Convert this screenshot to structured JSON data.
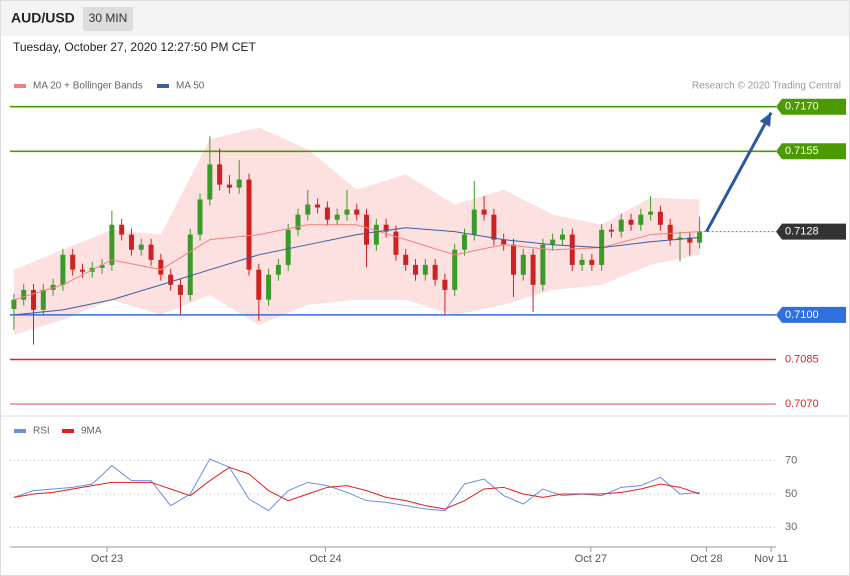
{
  "header": {
    "symbol": "AUD/USD",
    "timeframe": "30 MIN",
    "datetime": "Tuesday, October 27, 2020 12:27:50 PM CET"
  },
  "chart_data": [
    {
      "type": "candlestick",
      "credit": "Research © 2020 Trading Central",
      "xlim": [
        -0.4,
        77.8
      ],
      "ylim": [
        0.7066,
        0.7182
      ],
      "up_color": "#3a9a2a",
      "down_color": "#cc2222",
      "x": [
        0,
        1,
        2,
        3,
        4,
        5,
        6,
        7,
        8,
        9,
        10,
        11,
        12,
        13,
        14,
        15,
        16,
        17,
        18,
        19,
        20,
        21,
        22,
        23,
        24,
        25,
        26,
        27,
        28,
        29,
        30,
        31,
        32,
        33,
        34,
        35,
        36,
        37,
        38,
        39,
        40,
        41,
        42,
        43,
        44,
        45,
        46,
        47,
        48,
        49,
        50,
        51,
        52,
        53,
        54,
        55,
        56,
        57,
        58,
        59,
        60,
        61,
        62,
        63,
        64,
        65,
        66,
        67,
        68,
        69,
        70
      ],
      "open": [
        0.7102,
        0.71051,
        0.71084,
        0.71017,
        0.71084,
        0.71101,
        0.71202,
        0.71152,
        0.71145,
        0.71158,
        0.71168,
        0.71303,
        0.7127,
        0.71219,
        0.71236,
        0.71185,
        0.71135,
        0.71101,
        0.71067,
        0.7127,
        0.71388,
        0.71506,
        0.71438,
        0.71428,
        0.71455,
        0.71152,
        0.71051,
        0.71135,
        0.71168,
        0.71286,
        0.71337,
        0.71371,
        0.71361,
        0.7132,
        0.71337,
        0.71354,
        0.71337,
        0.71236,
        0.71303,
        0.7128,
        0.71202,
        0.71168,
        0.71135,
        0.71168,
        0.71118,
        0.71084,
        0.71219,
        0.7127,
        0.71354,
        0.71337,
        0.71253,
        0.71236,
        0.71135,
        0.71202,
        0.71101,
        0.71236,
        0.71253,
        0.7127,
        0.71168,
        0.71185,
        0.71168,
        0.71286,
        0.7128,
        0.7132,
        0.71303,
        0.71337,
        0.71347,
        0.71303,
        0.71253,
        0.7126,
        0.71243
      ],
      "high": [
        0.71071,
        0.71104,
        0.71104,
        0.71104,
        0.71121,
        0.71222,
        0.71222,
        0.71172,
        0.71178,
        0.71188,
        0.7135,
        0.71323,
        0.7129,
        0.71256,
        0.71256,
        0.71205,
        0.71155,
        0.71121,
        0.7129,
        0.71408,
        0.716,
        0.7156,
        0.7147,
        0.7152,
        0.71475,
        0.71172,
        0.71155,
        0.71188,
        0.71306,
        0.71357,
        0.7142,
        0.71391,
        0.71381,
        0.71357,
        0.7142,
        0.71374,
        0.71357,
        0.71323,
        0.71323,
        0.713,
        0.71222,
        0.71188,
        0.71188,
        0.71188,
        0.71138,
        0.71239,
        0.7129,
        0.7145,
        0.714,
        0.71357,
        0.71273,
        0.71256,
        0.71222,
        0.71222,
        0.71256,
        0.71273,
        0.7129,
        0.7129,
        0.71205,
        0.71205,
        0.71306,
        0.71306,
        0.7134,
        0.7134,
        0.71357,
        0.714,
        0.71367,
        0.71323,
        0.7128,
        0.7128,
        0.7133
      ],
      "low": [
        0.7095,
        0.71031,
        0.709,
        0.70997,
        0.71064,
        0.71081,
        0.71132,
        0.71125,
        0.71125,
        0.71138,
        0.71148,
        0.7125,
        0.71199,
        0.71199,
        0.71165,
        0.71115,
        0.71081,
        0.71,
        0.71047,
        0.7125,
        0.71368,
        0.71418,
        0.71408,
        0.71408,
        0.71132,
        0.7098,
        0.71031,
        0.71115,
        0.71148,
        0.71266,
        0.71317,
        0.71341,
        0.713,
        0.713,
        0.71317,
        0.71317,
        0.7116,
        0.71216,
        0.7126,
        0.71182,
        0.71148,
        0.71115,
        0.71115,
        0.71098,
        0.71,
        0.71064,
        0.71199,
        0.7125,
        0.71317,
        0.71233,
        0.71216,
        0.7106,
        0.71115,
        0.7101,
        0.71081,
        0.71216,
        0.71233,
        0.71148,
        0.71148,
        0.71148,
        0.71148,
        0.7126,
        0.7126,
        0.71283,
        0.71283,
        0.71317,
        0.71283,
        0.71233,
        0.7118,
        0.712,
        0.71223
      ],
      "close": [
        0.71051,
        0.71084,
        0.71017,
        0.71084,
        0.71101,
        0.71202,
        0.71152,
        0.71145,
        0.71158,
        0.71168,
        0.71303,
        0.7127,
        0.71219,
        0.71236,
        0.71185,
        0.71135,
        0.71101,
        0.71067,
        0.7127,
        0.71388,
        0.71506,
        0.71438,
        0.71428,
        0.71455,
        0.71152,
        0.71051,
        0.71135,
        0.71168,
        0.71286,
        0.71337,
        0.71371,
        0.71361,
        0.7132,
        0.71337,
        0.71354,
        0.71337,
        0.71236,
        0.71303,
        0.7128,
        0.71202,
        0.71168,
        0.71135,
        0.71168,
        0.71118,
        0.71084,
        0.71219,
        0.7127,
        0.71354,
        0.71337,
        0.71253,
        0.71236,
        0.71135,
        0.71202,
        0.71101,
        0.71236,
        0.71253,
        0.7127,
        0.71168,
        0.71185,
        0.71168,
        0.71286,
        0.7128,
        0.7132,
        0.71303,
        0.71337,
        0.71347,
        0.71303,
        0.71253,
        0.7126,
        0.71243,
        0.7128
      ],
      "overlays": {
        "x": [
          0,
          5,
          10,
          15,
          20,
          25,
          30,
          35,
          40,
          45,
          50,
          55,
          60,
          65,
          70
        ],
        "series": [
          {
            "name": "MA 20 + Bollinger Bands",
            "color": "#f08080",
            "band_color": "#fde0e0",
            "values": [
              0.71051,
              0.71101,
              0.71185,
              0.71152,
              0.71253,
              0.7127,
              0.71303,
              0.71303,
              0.71253,
              0.71202,
              0.71236,
              0.71219,
              0.71226,
              0.7127,
              0.7128
            ],
            "upper": [
              0.71152,
              0.71219,
              0.71286,
              0.7127,
              0.7159,
              0.7163,
              0.71556,
              0.71421,
              0.71472,
              0.71371,
              0.71421,
              0.71337,
              0.71303,
              0.71394,
              0.71388
            ],
            "lower": [
              0.70933,
              0.70983,
              0.71051,
              0.71,
              0.71067,
              0.70966,
              0.71034,
              0.71051,
              0.71051,
              0.71,
              0.71034,
              0.71084,
              0.71101,
              0.71168,
              0.71202
            ]
          },
          {
            "name": "MA 50",
            "color": "#3a5f9f",
            "values": [
              0.71,
              0.71017,
              0.71051,
              0.71101,
              0.71152,
              0.71202,
              0.71236,
              0.7127,
              0.71293,
              0.7128,
              0.71253,
              0.71236,
              0.71226,
              0.71246,
              0.7126
            ]
          }
        ]
      },
      "levels": [
        {
          "value": 0.717,
          "label": "0.7170",
          "color": "#4a9a00",
          "style": "box",
          "line": "solid"
        },
        {
          "value": 0.7155,
          "label": "0.7155",
          "color": "#4a9a00",
          "style": "box",
          "line": "solid"
        },
        {
          "value": 0.7128,
          "label": "0.7128",
          "color": "#333333",
          "style": "box",
          "line": "dotted"
        },
        {
          "value": 0.71,
          "label": "0.7100",
          "color": "#2f6fe0",
          "style": "box",
          "line": "solid"
        },
        {
          "value": 0.7085,
          "label": "0.7085",
          "color": "#dd2222",
          "style": "text",
          "line": "solid"
        },
        {
          "value": 0.707,
          "label": "0.7070",
          "color": "#dd2222",
          "style": "text",
          "line": "solid"
        }
      ],
      "arrow": {
        "x": [
          70.7,
          77.3
        ],
        "y": [
          0.7128,
          0.7168
        ],
        "color": "#2c5aa0"
      }
    },
    {
      "type": "line",
      "xlim": [
        -0.4,
        77.8
      ],
      "ylim": [
        20,
        80
      ],
      "yticks": [
        30,
        50,
        70
      ],
      "grid": true,
      "xticks": [
        {
          "value": 9.5,
          "label": "Oct 23"
        },
        {
          "value": 31.8,
          "label": "Oct 24"
        },
        {
          "value": 58.9,
          "label": "Oct 27"
        },
        {
          "value": 70.7,
          "label": "Oct 28"
        },
        {
          "value": 77.3,
          "label": "Nov 11"
        }
      ],
      "x": [
        0,
        2,
        4,
        6,
        8,
        10,
        12,
        14,
        16,
        18,
        20,
        22,
        24,
        26,
        28,
        30,
        32,
        34,
        36,
        38,
        40,
        42,
        44,
        46,
        48,
        50,
        52,
        54,
        56,
        58,
        60,
        62,
        64,
        66,
        68,
        70
      ],
      "series": [
        {
          "name": "RSI",
          "color": "#6b8fe0",
          "values": [
            48,
            52,
            53,
            54,
            56,
            67,
            58,
            58,
            43,
            50,
            71,
            66,
            47,
            40,
            52,
            57,
            55,
            51,
            46,
            45,
            43,
            41,
            40,
            56,
            59,
            49,
            44,
            53,
            49,
            50,
            49,
            54,
            55,
            60,
            50,
            51
          ]
        },
        {
          "name": "9MA",
          "color": "#e02020",
          "values": [
            48,
            50,
            51,
            53,
            55,
            57,
            57,
            57,
            53,
            49,
            58,
            66,
            62,
            52,
            46,
            50,
            54,
            55,
            52,
            48,
            46,
            43,
            41,
            46,
            53,
            54,
            50,
            48,
            50,
            50,
            50,
            51,
            53,
            56,
            54,
            50
          ]
        }
      ]
    }
  ]
}
